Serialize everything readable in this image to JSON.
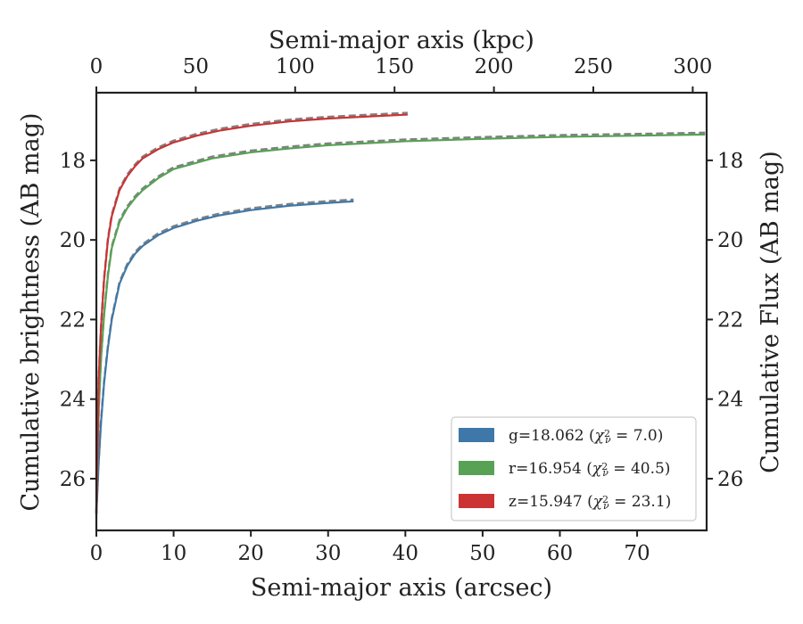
{
  "chart_data": {
    "type": "line",
    "xlabel": "Semi-major axis (arcsec)",
    "ylabel": "Cumulative brightness (AB mag)",
    "x2label": "Semi-major axis (kpc)",
    "y2label": "Cumulative Flux (AB mag)",
    "xlim": [
      0,
      79
    ],
    "ylim": [
      27.3,
      16.3
    ],
    "x2lim": [
      0,
      307
    ],
    "y_inverted": true,
    "xticks": [
      0,
      10,
      20,
      30,
      40,
      50,
      60,
      70
    ],
    "yticks": [
      18,
      20,
      22,
      24,
      26
    ],
    "x2ticks": [
      0,
      50,
      100,
      150,
      200,
      250,
      300
    ],
    "grid": false,
    "legend_position": "lower-right",
    "model_line_style": "dashed gray",
    "series": [
      {
        "name": "g=18.062 (χ²ν = 7.0)",
        "legend_main": "g=18.062 (",
        "legend_chi": "χ",
        "legend_sup": "2",
        "legend_sub": "ν",
        "legend_rest": " = 7.0)",
        "color": "#3f78a8",
        "x": [
          0,
          0.3,
          0.6,
          1,
          1.5,
          2,
          3,
          4,
          5,
          6,
          8,
          10,
          13,
          16,
          20,
          25,
          30,
          33.3
        ],
        "y": [
          26.9,
          25.6,
          24.6,
          23.6,
          22.7,
          22.0,
          21.1,
          20.65,
          20.35,
          20.15,
          19.88,
          19.7,
          19.52,
          19.38,
          19.25,
          19.14,
          19.07,
          19.03
        ]
      },
      {
        "name": "r=16.954 (χ²ν = 40.5)",
        "legend_main": "r=16.954 (",
        "legend_chi": "χ",
        "legend_sup": "2",
        "legend_sub": "ν",
        "legend_rest": " = 40.5)",
        "color": "#57a255",
        "x": [
          0,
          0.3,
          0.6,
          1,
          1.5,
          2,
          3,
          4,
          5,
          6,
          8,
          10,
          15,
          20,
          25,
          30,
          40,
          50,
          60,
          70,
          78.8
        ],
        "y": [
          26.9,
          24.3,
          23.0,
          21.9,
          20.9,
          20.2,
          19.55,
          19.2,
          18.95,
          18.75,
          18.45,
          18.22,
          17.95,
          17.8,
          17.7,
          17.62,
          17.52,
          17.46,
          17.41,
          17.38,
          17.35
        ]
      },
      {
        "name": "z=15.947 (χ²ν = 23.1)",
        "legend_main": "z=15.947 (",
        "legend_chi": "χ",
        "legend_sup": "2",
        "legend_sub": "ν",
        "legend_rest": " = 23.1)",
        "color": "#cc3333",
        "x": [
          0,
          0.3,
          0.6,
          1,
          1.5,
          2,
          3,
          4,
          5,
          6,
          8,
          10,
          13,
          16,
          20,
          25,
          30,
          35,
          40.3
        ],
        "y": [
          26.9,
          23.5,
          22.2,
          21.0,
          20.0,
          19.4,
          18.75,
          18.4,
          18.15,
          17.95,
          17.72,
          17.55,
          17.38,
          17.25,
          17.13,
          17.02,
          16.95,
          16.9,
          16.85
        ]
      }
    ]
  }
}
